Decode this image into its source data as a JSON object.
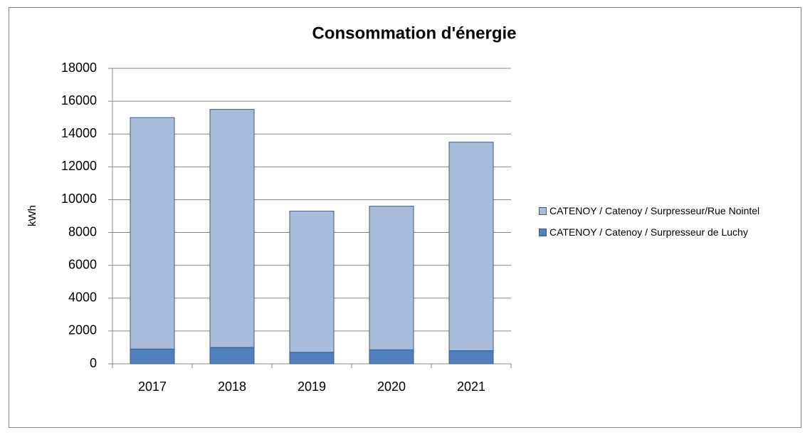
{
  "chart_data": {
    "type": "stacked_bar",
    "title": "Consommation d'énergie",
    "y_label": "kWh",
    "categories": [
      "2017",
      "2018",
      "2019",
      "2020",
      "2021"
    ],
    "series": [
      {
        "name": "CATENOY / Catenoy / Surpresseur de Luchy",
        "color": "#4f81bd",
        "values": [
          900,
          1000,
          700,
          850,
          800
        ]
      },
      {
        "name": "CATENOY / Catenoy / Surpresseur/Rue Nointel",
        "color": "#a9bcdc",
        "values": [
          14100,
          14500,
          8600,
          8750,
          12700
        ]
      }
    ],
    "ylim": [
      0,
      18000
    ],
    "yticks": [
      0,
      2000,
      4000,
      6000,
      8000,
      10000,
      12000,
      14000,
      16000,
      18000
    ],
    "grid": true,
    "legend": "right"
  }
}
